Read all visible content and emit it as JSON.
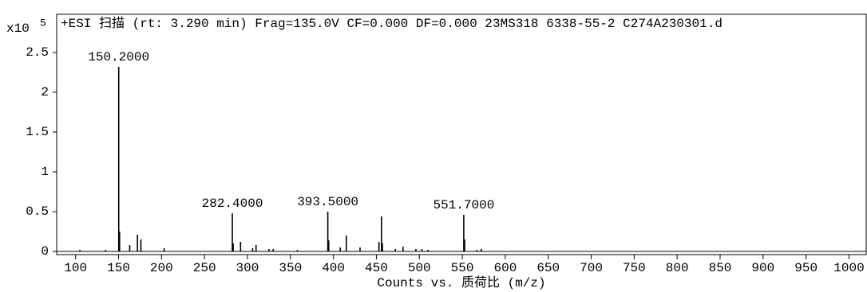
{
  "chart_data": {
    "type": "stick",
    "title": "+ESI 扫描 (rt: 3.290 min) Frag=135.0V CF=0.000 DF=0.000 23MS318 6338-55-2 C274A230301.d",
    "y_multiplier": "x10",
    "y_exponent": "5",
    "x_label": "Counts vs. 质荷比 (m/z)",
    "color": "#000000",
    "x": [
      105,
      135,
      150.2,
      151.2,
      163,
      172,
      176,
      203,
      282.4,
      283.4,
      292,
      306,
      310,
      325,
      330,
      358,
      393.5,
      394.5,
      408,
      415,
      431,
      453,
      456,
      457,
      472,
      481,
      496,
      503,
      510,
      551.7,
      552.7,
      567,
      572
    ],
    "values": [
      0.02,
      0.02,
      2.32,
      0.25,
      0.08,
      0.21,
      0.15,
      0.04,
      0.48,
      0.1,
      0.12,
      0.04,
      0.08,
      0.03,
      0.03,
      0.02,
      0.5,
      0.14,
      0.05,
      0.2,
      0.05,
      0.12,
      0.44,
      0.1,
      0.03,
      0.06,
      0.03,
      0.03,
      0.02,
      0.46,
      0.15,
      0.02,
      0.03
    ],
    "annotations": [
      {
        "text": "150.2000",
        "x": 150.2,
        "y": 2.32
      },
      {
        "text": "282.4000",
        "x": 282.4,
        "y": 0.48
      },
      {
        "text": "393.5000",
        "x": 393.5,
        "y": 0.5
      },
      {
        "text": "551.7000",
        "x": 551.7,
        "y": 0.46
      }
    ],
    "xlim": [
      78,
      1020
    ],
    "ylim": [
      -0.04,
      2.98
    ],
    "xticks": [
      100,
      150,
      200,
      250,
      300,
      350,
      400,
      450,
      500,
      550,
      600,
      650,
      700,
      750,
      800,
      850,
      900,
      950,
      1000
    ],
    "yticks": [
      0,
      0.5,
      1,
      1.5,
      2,
      2.5
    ]
  }
}
